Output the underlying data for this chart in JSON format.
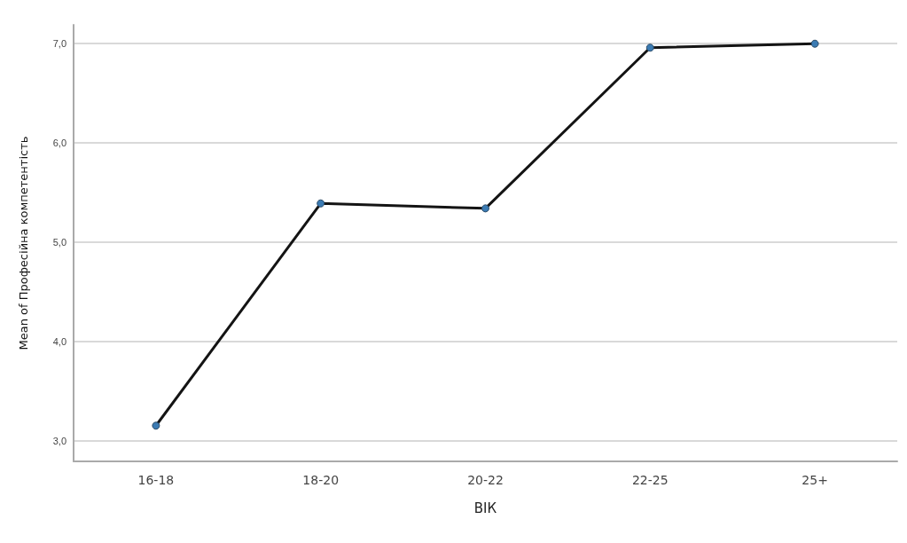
{
  "chart_data": {
    "type": "line",
    "xlabel": "ВІК",
    "ylabel": "Mean of Професійна компетентість",
    "categories": [
      "16-18",
      "18-20",
      "20-22",
      "22-25",
      "25+"
    ],
    "series": [
      {
        "color": "#141414",
        "colors": [
          "#3b7bb3",
          "#3b7bb3",
          "#3b7bb3",
          "#3b7bb3",
          "#3b7bb3"
        ],
        "values": [
          3.15,
          5.39,
          5.34,
          6.96,
          7.0
        ]
      }
    ],
    "ylim": [
      2.79,
      7.19
    ],
    "yticks": [
      {
        "value": 3,
        "label": "3,0"
      },
      {
        "value": 4,
        "label": "4,0"
      },
      {
        "value": 5,
        "label": "5,0"
      },
      {
        "value": 6,
        "label": "6,0"
      },
      {
        "value": 7,
        "label": "7,0"
      }
    ],
    "grid": "y",
    "marker": "circle",
    "line_style": "solid"
  }
}
